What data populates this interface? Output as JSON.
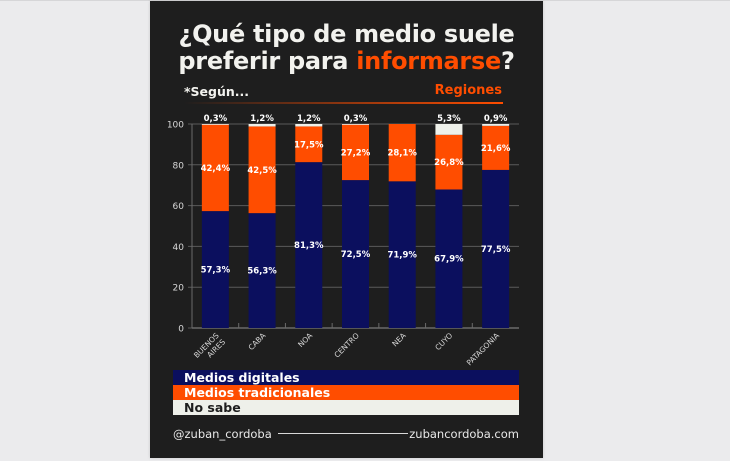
{
  "header": {
    "title_line1": "¿Qué tipo de medio suele",
    "title_line2_prefix": "preferir para ",
    "title_line2_highlight": "informarse",
    "title_line2_suffix": "?",
    "segun_label": "*Según...",
    "segment_label": "Regiones"
  },
  "colors": {
    "background": "#1e1e1e",
    "digital": "#0b0f5e",
    "traditional": "#ff4d00",
    "no_sabe": "#eef0ea",
    "text": "#f2f2ee"
  },
  "chart_data": {
    "type": "bar",
    "stacked": true,
    "title": "¿Qué tipo de medio suele preferir para informarse?",
    "xlabel": "",
    "ylabel": "",
    "ylim": [
      0,
      100
    ],
    "yticks": [
      0,
      20,
      40,
      60,
      80,
      100
    ],
    "grid": true,
    "legend_position": "bottom",
    "categories": [
      "BUENOS AIRES",
      "CABA",
      "NOA",
      "CENTRO",
      "NEA",
      "CUYO",
      "PATAGONIA"
    ],
    "category_lines": [
      [
        "BUENOS",
        "AIRES"
      ],
      [
        "CABA"
      ],
      [
        "NOA"
      ],
      [
        "CENTRO"
      ],
      [
        "NEA"
      ],
      [
        "CUYO"
      ],
      [
        "PATAGONIA"
      ]
    ],
    "series": [
      {
        "name": "Medios digitales",
        "values": [
          57.3,
          56.3,
          81.3,
          72.5,
          71.9,
          67.9,
          77.5
        ],
        "labels": [
          "57,3%",
          "56,3%",
          "81,3%",
          "72,5%",
          "71,9%",
          "67,9%",
          "77,5%"
        ]
      },
      {
        "name": "Medios tradicionales",
        "values": [
          42.4,
          42.5,
          17.5,
          27.2,
          28.1,
          26.8,
          21.6
        ],
        "labels": [
          "42,4%",
          "42,5%",
          "17,5%",
          "27,2%",
          "28,1%",
          "26,8%",
          "21,6%"
        ]
      },
      {
        "name": "No sabe",
        "values": [
          0.3,
          1.2,
          1.2,
          0.3,
          0.0,
          5.3,
          0.9
        ],
        "labels": [
          "0,3%",
          "1,2%",
          "1,2%",
          "0,3%",
          "",
          "5,3%",
          "0,9%"
        ]
      }
    ]
  },
  "legend": {
    "items": [
      "Medios digitales",
      "Medios tradicionales",
      "No sabe"
    ]
  },
  "footer": {
    "handle": "@zuban_cordoba",
    "website": "zubancordoba.com"
  }
}
